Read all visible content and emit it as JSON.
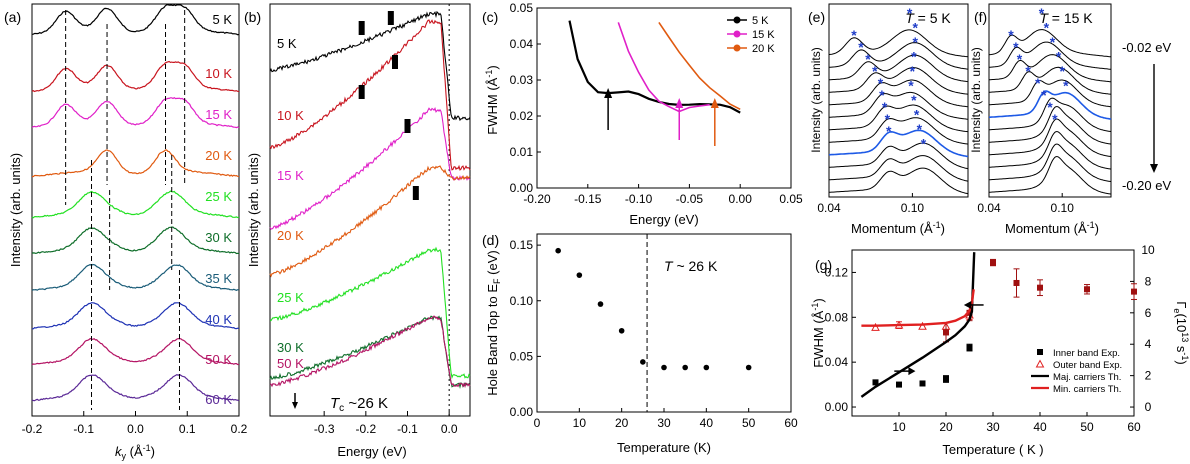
{
  "panels": {
    "a": {
      "label": "(a)",
      "xlabel_main": "k",
      "xlabel_sub": "y",
      "xlabel_unit": " (Å",
      "xlabel_exp": "-1",
      "xlabel_close": ")",
      "ylabel": "Intensity (arb. units)",
      "xticks": [
        "-0.2",
        "-0.1",
        "0.0",
        "0.1",
        "0.2"
      ]
    },
    "b": {
      "label": "(b)",
      "xlabel": "Energy (eV)",
      "ylabel": "Intensity (arb. units)",
      "xticks": [
        "-0.3",
        "-0.2",
        "-0.1",
        "0.0"
      ],
      "tc_main": "T",
      "tc_sub": "c",
      "tc_rest": " ~26 K"
    },
    "c": {
      "label": "(c)",
      "xlabel": "Energy (eV)",
      "ylabel_main": "FWHM (Å",
      "ylabel_exp": "-1",
      "ylabel_close": ")",
      "xticks": [
        "-0.20",
        "-0.15",
        "-0.10",
        "-0.05",
        "0.00",
        "0.05"
      ],
      "yticks": [
        "0.00",
        "0.01",
        "0.02",
        "0.03",
        "0.04",
        "0.05"
      ]
    },
    "d": {
      "label": "(d)",
      "xlabel": "Temperature (K)",
      "ylabel_main": "Hole Band Top to E",
      "ylabel_sub": "F",
      "ylabel_close": " (eV)",
      "xticks": [
        "0",
        "10",
        "20",
        "30",
        "40",
        "50",
        "60"
      ],
      "yticks": [
        "0.00",
        "0.05",
        "0.10",
        "0.15"
      ],
      "annotation_main": "T",
      "annotation_rest": " ~ 26 K"
    },
    "e": {
      "label": "(e)",
      "title_main": "T",
      "title_rest": " = 5 K",
      "xlabel_main": "Momentum (Å",
      "xlabel_exp": "-1",
      "xlabel_close": ")",
      "ylabel": "Intensity (arb. units)",
      "xticks": [
        "0.04",
        "0.10"
      ]
    },
    "f": {
      "label": "(f)",
      "title_main": "T",
      "title_rest": " = 15 K",
      "xlabel_main": "Momentum (Å",
      "xlabel_exp": "-1",
      "xlabel_close": ")",
      "ylabel": "Intensity (arb. units)",
      "xticks": [
        "0.04",
        "0.10"
      ],
      "energy_top": "-0.02 eV",
      "energy_bottom": "-0.20 eV"
    },
    "g": {
      "label": "(g)",
      "xlabel_main": "Temperature",
      "xlabel_rest": " ( K )",
      "ylabel_main": "FWHM (Å",
      "ylabel_exp": "-1",
      "ylabel_close": ")",
      "y2label_main": "Γ",
      "y2label_sub": "e",
      "y2label_mid": "(10",
      "y2label_exp": "13",
      "y2label_unit": " s",
      "y2label_exp2": "-1",
      "y2label_close": ")",
      "xticks": [
        "10",
        "20",
        "30",
        "40",
        "50",
        "60"
      ],
      "yticks": [
        "0.00",
        "0.04",
        "0.08",
        "0.12"
      ],
      "y2ticks": [
        "0",
        "2",
        "4",
        "6",
        "8",
        "10"
      ],
      "legend": [
        "Inner band Exp.",
        "Outer band Exp.",
        "Maj. carriers Th.",
        "Min. carriers Th."
      ]
    }
  },
  "chart_data": [
    {
      "panel": "a",
      "type": "line",
      "title": "",
      "xlabel": "ky (Å-1)",
      "ylabel": "Intensity (arb. units)",
      "xlim": [
        -0.2,
        0.2
      ],
      "series": [
        {
          "name": "5 K",
          "color": "#000000",
          "peaks": [
            -0.135,
            -0.055,
            0.058,
            0.095
          ]
        },
        {
          "name": "10 K",
          "color": "#c8141e",
          "peaks": [
            -0.135,
            -0.055,
            0.058,
            0.095
          ]
        },
        {
          "name": "15 K",
          "color": "#e020c8",
          "peaks": [
            -0.135,
            -0.055,
            0.058,
            0.095
          ]
        },
        {
          "name": "20 K",
          "color": "#e05a10",
          "peaks": [
            -0.055,
            0.058
          ]
        },
        {
          "name": "25 K",
          "color": "#22e022",
          "peaks": [
            -0.085,
            0.07
          ]
        },
        {
          "name": "30 K",
          "color": "#0f6e2a",
          "peaks": [
            -0.085,
            0.07
          ]
        },
        {
          "name": "35 K",
          "color": "#1a5c78",
          "peaks": [
            -0.085,
            0.08
          ]
        },
        {
          "name": "40 K",
          "color": "#1e32b4",
          "peaks": [
            -0.085,
            0.082
          ]
        },
        {
          "name": "50 K",
          "color": "#b41464",
          "peaks": [
            -0.085,
            0.085
          ]
        },
        {
          "name": "60 K",
          "color": "#5a2896",
          "peaks": [
            -0.085,
            0.085
          ]
        }
      ]
    },
    {
      "panel": "b",
      "type": "line",
      "title": "",
      "xlabel": "Energy (eV)",
      "ylabel": "Intensity (arb. units)",
      "xlim": [
        -0.43,
        0.05
      ],
      "series": [
        {
          "name": "5 K",
          "color": "#000000",
          "marks": [
            -0.21,
            -0.14
          ]
        },
        {
          "name": "10 K",
          "color": "#c8141e",
          "marks": [
            -0.21,
            -0.13
          ]
        },
        {
          "name": "15 K",
          "color": "#e020c8",
          "marks": [
            -0.1
          ]
        },
        {
          "name": "20 K",
          "color": "#e05a10",
          "marks": [
            -0.08
          ]
        },
        {
          "name": "25 K",
          "color": "#22e022",
          "marks": []
        },
        {
          "name": "30 K",
          "color": "#0f6e2a",
          "marks": []
        },
        {
          "name": "50 K",
          "color": "#b41464",
          "marks": []
        }
      ],
      "annotation": "Tc ~26 K"
    },
    {
      "panel": "c",
      "type": "line",
      "title": "",
      "xlabel": "Energy (eV)",
      "ylabel": "FWHM (Å-1)",
      "xlim": [
        -0.2,
        0.05
      ],
      "ylim": [
        0.0,
        0.05
      ],
      "series": [
        {
          "name": "5 K",
          "color": "#000000",
          "x": [
            -0.168,
            -0.16,
            -0.15,
            -0.14,
            -0.13,
            -0.12,
            -0.11,
            -0.1,
            -0.09,
            -0.08,
            -0.07,
            -0.06,
            -0.05,
            -0.04,
            -0.03,
            -0.02,
            -0.01,
            0.0
          ],
          "y": [
            0.0465,
            0.0358,
            0.0293,
            0.0268,
            0.0262,
            0.0266,
            0.0268,
            0.0262,
            0.0248,
            0.0238,
            0.0232,
            0.023,
            0.0232,
            0.0234,
            0.0232,
            0.023,
            0.0226,
            0.0208
          ]
        },
        {
          "name": "15 K",
          "color": "#e020c8",
          "x": [
            -0.12,
            -0.11,
            -0.1,
            -0.09,
            -0.08,
            -0.07,
            -0.06,
            -0.05,
            -0.04,
            -0.03
          ],
          "y": [
            0.046,
            0.038,
            0.032,
            0.0274,
            0.0243,
            0.0224,
            0.0212,
            0.0223,
            0.0227,
            0.0232
          ]
        },
        {
          "name": "20 K",
          "color": "#e05a10",
          "x": [
            -0.08,
            -0.07,
            -0.06,
            -0.05,
            -0.04,
            -0.03,
            -0.02,
            -0.01,
            0.0
          ],
          "y": [
            0.046,
            0.0418,
            0.0378,
            0.034,
            0.0304,
            0.0278,
            0.0256,
            0.0232,
            0.022
          ]
        }
      ],
      "arrows": [
        {
          "color": "#000000",
          "x": -0.13
        },
        {
          "color": "#e020c8",
          "x": -0.06
        },
        {
          "color": "#e05a10",
          "x": -0.025
        }
      ]
    },
    {
      "panel": "d",
      "type": "scatter",
      "title": "",
      "xlabel": "Temperature (K)",
      "ylabel": "Hole Band Top to EF (eV)",
      "xlim": [
        0,
        60
      ],
      "ylim": [
        0.0,
        0.16
      ],
      "x": [
        5,
        10,
        15,
        20,
        25,
        30,
        35,
        40,
        50
      ],
      "y": [
        0.145,
        0.123,
        0.097,
        0.073,
        0.045,
        0.04,
        0.04,
        0.04,
        0.04
      ],
      "vline": 26,
      "annotation": "T ~ 26 K"
    },
    {
      "panel": "e",
      "type": "line",
      "title": "T = 5 K",
      "xlabel": "Momentum (Å-1)",
      "ylabel": "Intensity (arb. units)",
      "xlim": [
        0.04,
        0.14
      ],
      "series": [
        {
          "name": "inner-band peaks",
          "x": [
            0.058,
            0.063,
            0.068,
            0.073,
            0.077,
            0.078,
            0.08,
            0.082,
            0.083
          ]
        },
        {
          "name": "outer-band peaks",
          "x": [
            0.098,
            0.102,
            0.102,
            0.101,
            0.1,
            0.099,
            0.101,
            0.103,
            0.105,
            0.108
          ]
        }
      ],
      "highlight": "blue curve near ~0.09 Å-1"
    },
    {
      "panel": "f",
      "type": "line",
      "title": "T = 15 K",
      "xlabel": "Momentum (Å-1)",
      "ylabel": "Intensity (arb. units)",
      "xlim": [
        0.04,
        0.14
      ],
      "series": [
        {
          "name": "inner-band peaks",
          "x": [
            0.058,
            0.062,
            0.065,
            0.072,
            0.08,
            0.085,
            0.09,
            0.094
          ]
        },
        {
          "name": "outer-band peaks",
          "x": [
            0.083,
            0.087,
            0.092,
            0.097,
            0.1,
            0.103
          ]
        }
      ],
      "energy_range": [
        "-0.02 eV",
        "-0.20 eV"
      ]
    },
    {
      "panel": "g",
      "type": "scatter",
      "title": "",
      "xlabel": "Temperature ( K )",
      "ylabel": "FWHM (Å-1)",
      "y2label": "Γe (10^13 s^-1)",
      "xlim": [
        0,
        60
      ],
      "ylim": [
        -0.008,
        0.14
      ],
      "y2lim": [
        -0.57,
        10
      ],
      "series": [
        {
          "name": "Inner band Exp.",
          "marker": "square",
          "color": "#000000",
          "x": [
            5,
            10,
            15,
            20,
            25
          ],
          "y": [
            0.022,
            0.02,
            0.021,
            0.025,
            0.053
          ],
          "err": [
            0.002,
            0.002,
            0.002,
            0.003,
            0.003
          ]
        },
        {
          "name": "Outer band Exp.",
          "marker": "triangle",
          "color": "#e02020",
          "x": [
            5,
            10,
            15,
            20,
            25
          ],
          "y": [
            0.071,
            0.073,
            0.072,
            0.072,
            0.082
          ],
          "err": [
            0.002,
            0.003,
            0.002,
            0.003,
            0.004
          ]
        },
        {
          "name": "Γe",
          "axis": "y2",
          "marker": "square",
          "color": "#a01010",
          "x": [
            20,
            25,
            30,
            35,
            40,
            50,
            60
          ],
          "y": [
            4.75,
            6.0,
            9.2,
            7.9,
            7.6,
            7.5,
            7.35
          ],
          "err": [
            0.6,
            0.5,
            0.2,
            0.9,
            0.5,
            0.3,
            0.5
          ]
        },
        {
          "name": "Maj. carriers Th.",
          "type": "line",
          "color": "#000000",
          "x": [
            2,
            5,
            10,
            15,
            20,
            22,
            24,
            25,
            25.5,
            26
          ],
          "y": [
            0.009,
            0.018,
            0.031,
            0.044,
            0.058,
            0.064,
            0.072,
            0.078,
            0.085,
            0.138
          ]
        },
        {
          "name": "Min. carriers Th.",
          "type": "line",
          "color": "#e02020",
          "x": [
            2,
            5,
            10,
            15,
            20,
            22,
            24,
            25,
            25.5,
            25.9
          ],
          "y": [
            0.0725,
            0.0725,
            0.073,
            0.0735,
            0.075,
            0.077,
            0.081,
            0.086,
            0.093,
            0.105
          ]
        }
      ]
    }
  ]
}
